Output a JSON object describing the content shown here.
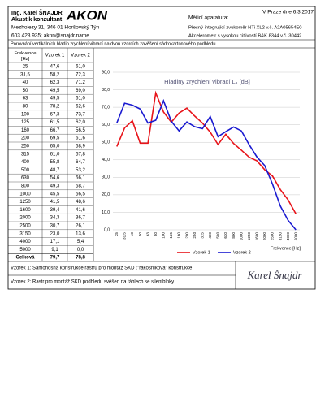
{
  "header": {
    "name": "Ing. Karel ŠNAJDR",
    "role": "Akustik konzultant",
    "logo": "AKON",
    "address": "Mezholezy 31, 346 01 Horšovský Týn",
    "contact": "603 423 935; akon@snajdr.name",
    "date": "V Praze dne 6.3.2017",
    "equipment_title": "Měřicí aparatura:",
    "equipment_1": "Přesný integrující zvukoměr NTi XL2 v.č. A2A05654E0",
    "equipment_2": "Akcelerometr s vysokou citlivostí B&K 8344 v.č. 30442"
  },
  "heading": "Porovnání vertikálních hladin zrychlení vibrací na dvou vzorcích zavěšení sádrokartonového podhledu",
  "table": {
    "columns": [
      "Frekvence [Hz]",
      "Vzorek 1",
      "Vzorek 2"
    ],
    "total": [
      "Celková",
      "79,7",
      "78,8"
    ]
  },
  "chart_data": {
    "type": "line",
    "title": "Hladiny zrychlení vibrací L",
    "title_sub": "a",
    "title_unit": "[dB]",
    "x_label": "Frekvence [Hz]",
    "categories": [
      "25",
      "31,5",
      "40",
      "50",
      "63",
      "80",
      "100",
      "125",
      "160",
      "200",
      "250",
      "315",
      "400",
      "500",
      "630",
      "800",
      "1000",
      "1250",
      "1600",
      "2000",
      "2500",
      "3150",
      "4000",
      "5000"
    ],
    "series": [
      {
        "name": "Vzorek 1",
        "color": "#e8141a",
        "values": [
          47.6,
          58.2,
          62.3,
          49.5,
          49.5,
          78.2,
          67.3,
          61.5,
          66.7,
          69.5,
          65.0,
          61.0,
          55.8,
          48.7,
          54.6,
          49.3,
          45.5,
          41.5,
          39.4,
          34.3,
          30.7,
          23.0,
          17.1,
          9.1
        ],
        "value_labels": [
          "47,6",
          "58,2",
          "62,3",
          "49,5",
          "49,5",
          "78,2",
          "67,3",
          "61,5",
          "66,7",
          "69,5",
          "65,0",
          "61,0",
          "55,8",
          "48,7",
          "54,6",
          "49,3",
          "45,5",
          "41,5",
          "39,4",
          "34,3",
          "30,7",
          "23,0",
          "17,1",
          "9,1"
        ]
      },
      {
        "name": "Vzorek 2",
        "color": "#1a1ad0",
        "values": [
          61.0,
          72.3,
          71.2,
          69.0,
          61.0,
          62.6,
          73.7,
          62.0,
          56.5,
          61.6,
          58.9,
          57.8,
          64.7,
          53.2,
          56.1,
          58.7,
          56.5,
          48.6,
          41.6,
          36.7,
          26.1,
          13.6,
          5.4,
          0.0
        ],
        "value_labels": [
          "61,0",
          "72,3",
          "71,2",
          "69,0",
          "61,0",
          "62,6",
          "73,7",
          "62,0",
          "56,5",
          "61,6",
          "58,9",
          "57,8",
          "64,7",
          "53,2",
          "56,1",
          "58,7",
          "56,5",
          "48,6",
          "41,6",
          "36,7",
          "26,1",
          "13,6",
          "5,4",
          "0,0"
        ]
      }
    ],
    "ylim": [
      0,
      90
    ],
    "yticks": [
      {
        "value": 0,
        "label": "0,0"
      },
      {
        "value": 10,
        "label": "10,0"
      },
      {
        "value": 20,
        "label": "20,0"
      },
      {
        "value": 30,
        "label": "30,0"
      },
      {
        "value": 40,
        "label": "40,0"
      },
      {
        "value": 50,
        "label": "50,0"
      },
      {
        "value": 60,
        "label": "60,0"
      },
      {
        "value": 70,
        "label": "70,0"
      },
      {
        "value": 80,
        "label": "80,0"
      },
      {
        "value": 90,
        "label": "90,0"
      }
    ],
    "grid": true,
    "legend": "bottom"
  },
  "footer": {
    "note_1": "Vzorek 1: Samonosná konstrukce rastru pro montáž SKD (\"rákosníková\" konstrukce)",
    "note_2": "Vzorek 2: Rastr pro montáž SKD podhledu svěšen na táhlech se silentbloky",
    "signature": "Karel Šnajdr"
  }
}
